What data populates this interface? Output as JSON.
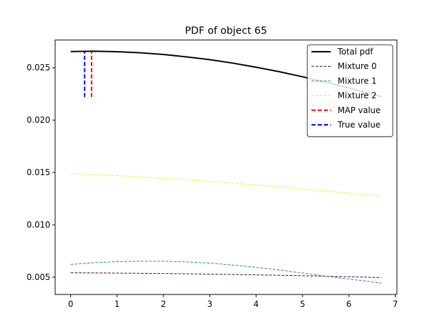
{
  "chart_data": {
    "type": "line",
    "title": "PDF of object 65",
    "xlabel": "",
    "ylabel": "",
    "xlim": [
      -0.335,
      7.035
    ],
    "ylim": [
      0.00335,
      0.02765
    ],
    "xticks": [
      0,
      1,
      2,
      3,
      4,
      5,
      6,
      7
    ],
    "xtick_labels": [
      "0",
      "1",
      "2",
      "3",
      "4",
      "5",
      "6",
      "7"
    ],
    "yticks": [
      0.005,
      0.01,
      0.015,
      0.02,
      0.025
    ],
    "ytick_labels": [
      "0.005",
      "0.010",
      "0.015",
      "0.020",
      "0.025"
    ],
    "grid": false,
    "legend_position": "top-right",
    "series": [
      {
        "name": "Total pdf",
        "color": "#000000",
        "style": "solid",
        "x": [
          0,
          0.5,
          1,
          1.5,
          2,
          2.5,
          3,
          3.5,
          4,
          4.5,
          5,
          5.5,
          6,
          6.5,
          6.7
        ],
        "y": [
          0.02655,
          0.02658,
          0.02653,
          0.02643,
          0.02627,
          0.02604,
          0.02577,
          0.02544,
          0.02505,
          0.02462,
          0.02414,
          0.02362,
          0.02306,
          0.02248,
          0.02224
        ]
      },
      {
        "name": "Mixture 0",
        "color": "#440154",
        "style": "dashed",
        "x": [
          0,
          1,
          2,
          3,
          4,
          5,
          6,
          6.7
        ],
        "y": [
          0.00542,
          0.00539,
          0.00535,
          0.00529,
          0.00522,
          0.00514,
          0.00504,
          0.00497
        ]
      },
      {
        "name": "Mixture 1",
        "color": "#21918c",
        "style": "dashed",
        "x": [
          0,
          0.5,
          1,
          1.5,
          2,
          2.5,
          3,
          3.5,
          4,
          4.5,
          5,
          5.5,
          6,
          6.5,
          6.7
        ],
        "y": [
          0.00622,
          0.00638,
          0.00648,
          0.00652,
          0.00652,
          0.00646,
          0.00634,
          0.00616,
          0.00594,
          0.00568,
          0.0054,
          0.0051,
          0.00482,
          0.00456,
          0.00444
        ]
      },
      {
        "name": "Mixture 2",
        "color": "#fde725",
        "style": "dashed",
        "x": [
          0,
          1,
          2,
          3,
          4,
          5,
          6,
          6.7
        ],
        "y": [
          0.0149,
          0.0147,
          0.01445,
          0.01415,
          0.0138,
          0.01343,
          0.01302,
          0.01273
        ]
      }
    ],
    "vlines": [
      {
        "name": "True value",
        "color": "#0000ff",
        "x": 0.3,
        "y_range": [
          0.0222,
          0.0265
        ]
      },
      {
        "name": "MAP value",
        "color": "#ff0000",
        "x": 0.45,
        "y_range": [
          0.0222,
          0.0265
        ]
      }
    ],
    "legend": [
      {
        "label": "Total pdf",
        "color": "#000000",
        "style": "solid-thick"
      },
      {
        "label": "Mixture 0",
        "color": "#440154",
        "style": "dashed-thin"
      },
      {
        "label": "Mixture 1",
        "color": "#21918c",
        "style": "dashed-thin"
      },
      {
        "label": "Mixture 2",
        "color": "#fde725",
        "style": "dashed-thin"
      },
      {
        "label": "MAP value",
        "color": "#ff0000",
        "style": "dashed-thick"
      },
      {
        "label": "True value",
        "color": "#0000ff",
        "style": "dashed-thick"
      }
    ]
  }
}
